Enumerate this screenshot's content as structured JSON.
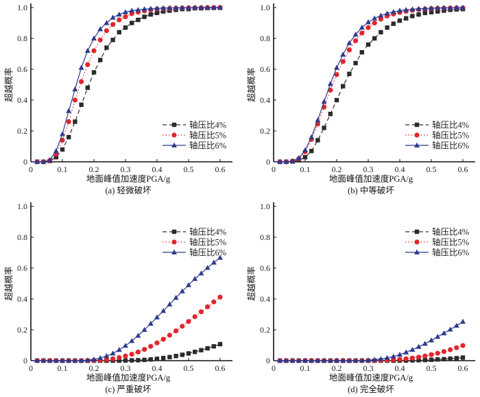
{
  "figure": {
    "series_styles": [
      {
        "name": "轴压比4%",
        "color": "#2b2b2b",
        "marker": "square",
        "dash": "6,4"
      },
      {
        "name": "轴压比5%",
        "color": "#e0262c",
        "marker": "circle",
        "dash": "1.5,3"
      },
      {
        "name": "轴压比6%",
        "color": "#2e3a8c",
        "marker": "triangle",
        "dash": ""
      }
    ]
  },
  "chart_data": [
    {
      "type": "line",
      "caption": "(a) 轻微破坏",
      "xlabel": "地面峰值加速度PGA/g",
      "ylabel": "超越概率",
      "xlim": [
        0,
        0.6
      ],
      "ylim": [
        0,
        1.0
      ],
      "xticks": [
        "0",
        "0.1",
        "0.2",
        "0.3",
        "0.4",
        "0.5",
        "0.6"
      ],
      "yticks": [
        "0",
        "0.2",
        "0.4",
        "0.6",
        "0.8",
        "1.0"
      ],
      "legend_position": "lower-right",
      "x": [
        0,
        0.02,
        0.04,
        0.06,
        0.08,
        0.1,
        0.12,
        0.14,
        0.16,
        0.18,
        0.2,
        0.22,
        0.24,
        0.26,
        0.28,
        0.3,
        0.32,
        0.34,
        0.36,
        0.38,
        0.4,
        0.42,
        0.44,
        0.46,
        0.48,
        0.5,
        0.52,
        0.54,
        0.56,
        0.58,
        0.6
      ],
      "series": [
        {
          "name": "轴压比4%",
          "values": [
            0,
            0,
            0,
            0.005,
            0.03,
            0.08,
            0.16,
            0.26,
            0.37,
            0.48,
            0.58,
            0.66,
            0.74,
            0.79,
            0.84,
            0.87,
            0.9,
            0.92,
            0.94,
            0.955,
            0.965,
            0.975,
            0.98,
            0.985,
            0.99,
            0.99,
            0.995,
            0.995,
            0.997,
            0.998,
            0.998
          ]
        },
        {
          "name": "轴压比5%",
          "values": [
            0,
            0,
            0,
            0.008,
            0.05,
            0.14,
            0.26,
            0.4,
            0.52,
            0.63,
            0.72,
            0.79,
            0.85,
            0.89,
            0.92,
            0.94,
            0.96,
            0.97,
            0.978,
            0.985,
            0.99,
            0.992,
            0.994,
            0.996,
            0.997,
            0.998,
            0.998,
            0.999,
            0.999,
            0.999,
            1.0
          ]
        },
        {
          "name": "轴压比6%",
          "values": [
            0,
            0,
            0,
            0.012,
            0.07,
            0.18,
            0.33,
            0.47,
            0.61,
            0.72,
            0.8,
            0.86,
            0.9,
            0.935,
            0.955,
            0.97,
            0.98,
            0.985,
            0.99,
            0.993,
            0.995,
            0.997,
            0.998,
            0.998,
            0.999,
            0.999,
            1.0,
            1.0,
            1.0,
            1.0,
            1.0
          ]
        }
      ]
    },
    {
      "type": "line",
      "caption": "(b) 中等破坏",
      "xlabel": "地面峰值加速度PGA/g",
      "ylabel": "超越概率",
      "xlim": [
        0,
        0.6
      ],
      "ylim": [
        0,
        1.0
      ],
      "xticks": [
        "0",
        "0.1",
        "0.2",
        "0.3",
        "0.4",
        "0.5",
        "0.6"
      ],
      "yticks": [
        "0",
        "0.2",
        "0.4",
        "0.6",
        "0.8",
        "1.0"
      ],
      "legend_position": "lower-right",
      "x": [
        0,
        0.02,
        0.04,
        0.06,
        0.08,
        0.1,
        0.12,
        0.14,
        0.16,
        0.18,
        0.2,
        0.22,
        0.24,
        0.26,
        0.28,
        0.3,
        0.32,
        0.34,
        0.36,
        0.38,
        0.4,
        0.42,
        0.44,
        0.46,
        0.48,
        0.5,
        0.52,
        0.54,
        0.56,
        0.58,
        0.6
      ],
      "series": [
        {
          "name": "轴压比4%",
          "values": [
            0,
            0,
            0,
            0.002,
            0.01,
            0.03,
            0.07,
            0.14,
            0.22,
            0.31,
            0.4,
            0.49,
            0.57,
            0.64,
            0.71,
            0.76,
            0.8,
            0.84,
            0.87,
            0.895,
            0.915,
            0.93,
            0.945,
            0.955,
            0.965,
            0.97,
            0.975,
            0.98,
            0.985,
            0.988,
            0.99
          ]
        },
        {
          "name": "轴压比5%",
          "values": [
            0,
            0,
            0,
            0.005,
            0.02,
            0.065,
            0.145,
            0.245,
            0.355,
            0.465,
            0.565,
            0.65,
            0.725,
            0.785,
            0.835,
            0.87,
            0.9,
            0.925,
            0.945,
            0.958,
            0.968,
            0.976,
            0.982,
            0.987,
            0.99,
            0.993,
            0.995,
            0.996,
            0.997,
            0.998,
            0.998
          ]
        },
        {
          "name": "轴压比6%",
          "values": [
            0,
            0,
            0,
            0.006,
            0.025,
            0.075,
            0.16,
            0.27,
            0.39,
            0.505,
            0.61,
            0.695,
            0.77,
            0.825,
            0.87,
            0.905,
            0.93,
            0.948,
            0.962,
            0.972,
            0.98,
            0.985,
            0.989,
            0.992,
            0.994,
            0.996,
            0.997,
            0.998,
            0.998,
            0.999,
            0.999
          ]
        }
      ]
    },
    {
      "type": "line",
      "caption": "(c) 严重破坏",
      "xlabel": "地面峰值加速度PGA/g",
      "ylabel": "超越概率",
      "xlim": [
        0,
        0.6
      ],
      "ylim": [
        0,
        1.0
      ],
      "xticks": [
        "0",
        "0.1",
        "0.2",
        "0.3",
        "0.4",
        "0.5",
        "0.6"
      ],
      "yticks": [
        "0",
        "0.2",
        "0.4",
        "0.6",
        "0.8",
        "1.0"
      ],
      "legend_position": "top-right",
      "x": [
        0,
        0.02,
        0.04,
        0.06,
        0.08,
        0.1,
        0.12,
        0.14,
        0.16,
        0.18,
        0.2,
        0.22,
        0.24,
        0.26,
        0.28,
        0.3,
        0.32,
        0.34,
        0.36,
        0.38,
        0.4,
        0.42,
        0.44,
        0.46,
        0.48,
        0.5,
        0.52,
        0.54,
        0.56,
        0.58,
        0.6
      ],
      "series": [
        {
          "name": "轴压比4%",
          "values": [
            0,
            0,
            0,
            0,
            0,
            0,
            0,
            0,
            0,
            0,
            0,
            0,
            0,
            0,
            0,
            0.001,
            0.002,
            0.003,
            0.005,
            0.008,
            0.012,
            0.017,
            0.023,
            0.03,
            0.038,
            0.047,
            0.057,
            0.068,
            0.08,
            0.093,
            0.107
          ]
        },
        {
          "name": "轴压比5%",
          "values": [
            0,
            0,
            0,
            0,
            0,
            0,
            0,
            0,
            0,
            0,
            0.001,
            0.003,
            0.007,
            0.012,
            0.02,
            0.03,
            0.042,
            0.056,
            0.073,
            0.093,
            0.115,
            0.139,
            0.165,
            0.193,
            0.223,
            0.254,
            0.285,
            0.317,
            0.349,
            0.381,
            0.412
          ]
        },
        {
          "name": "轴压比6%",
          "values": [
            0,
            0,
            0,
            0,
            0,
            0,
            0,
            0,
            0,
            0.003,
            0.008,
            0.017,
            0.03,
            0.047,
            0.07,
            0.097,
            0.128,
            0.162,
            0.2,
            0.24,
            0.281,
            0.323,
            0.365,
            0.408,
            0.45,
            0.49,
            0.53,
            0.566,
            0.602,
            0.636,
            0.668
          ]
        }
      ]
    },
    {
      "type": "line",
      "caption": "(d) 完全破坏",
      "xlabel": "地面峰值加速度PGA/g",
      "ylabel": "超越概率",
      "xlim": [
        0,
        0.6
      ],
      "ylim": [
        0,
        1.0
      ],
      "xticks": [
        "0",
        "0.1",
        "0.2",
        "0.3",
        "0.4",
        "0.5",
        "0.6"
      ],
      "yticks": [
        "0",
        "0.2",
        "0.4",
        "0.6",
        "0.8",
        "1.0"
      ],
      "legend_position": "top-right",
      "x": [
        0,
        0.02,
        0.04,
        0.06,
        0.08,
        0.1,
        0.12,
        0.14,
        0.16,
        0.18,
        0.2,
        0.22,
        0.24,
        0.26,
        0.28,
        0.3,
        0.32,
        0.34,
        0.36,
        0.38,
        0.4,
        0.42,
        0.44,
        0.46,
        0.48,
        0.5,
        0.52,
        0.54,
        0.56,
        0.58,
        0.6
      ],
      "series": [
        {
          "name": "轴压比4%",
          "values": [
            0,
            0,
            0,
            0,
            0,
            0,
            0,
            0,
            0,
            0,
            0,
            0,
            0,
            0,
            0,
            0,
            0,
            0,
            0,
            0,
            0.001,
            0.001,
            0.002,
            0.003,
            0.004,
            0.006,
            0.008,
            0.01,
            0.013,
            0.016,
            0.02
          ]
        },
        {
          "name": "轴压比5%",
          "values": [
            0,
            0,
            0,
            0,
            0,
            0,
            0,
            0,
            0,
            0,
            0,
            0,
            0,
            0,
            0,
            0,
            0,
            0.001,
            0.003,
            0.005,
            0.008,
            0.012,
            0.017,
            0.023,
            0.03,
            0.039,
            0.048,
            0.059,
            0.071,
            0.084,
            0.098
          ]
        },
        {
          "name": "轴压比6%",
          "values": [
            0,
            0,
            0,
            0,
            0,
            0,
            0,
            0,
            0,
            0,
            0,
            0,
            0,
            0,
            0.001,
            0.003,
            0.006,
            0.011,
            0.018,
            0.027,
            0.039,
            0.054,
            0.071,
            0.09,
            0.11,
            0.132,
            0.155,
            0.178,
            0.202,
            0.227,
            0.253
          ]
        }
      ]
    }
  ]
}
